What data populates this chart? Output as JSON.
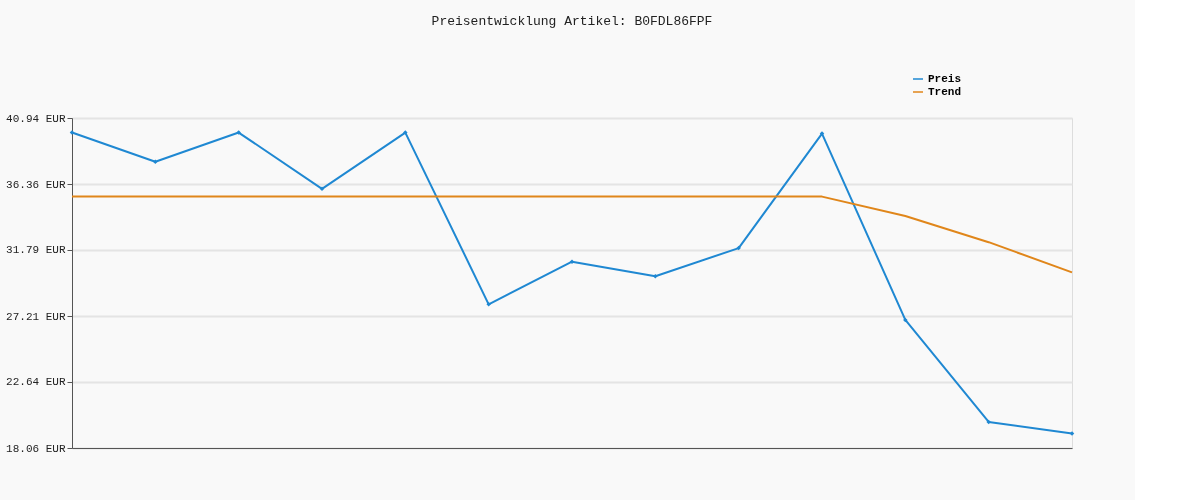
{
  "chart_data": {
    "type": "line",
    "title": "Preisentwicklung Artikel: B0FDL86FPF",
    "categories": [
      null,
      null,
      null,
      null,
      null,
      null,
      null,
      null,
      null,
      null,
      null,
      null,
      null
    ],
    "series": [
      {
        "name": "Preis",
        "color": "#1f88d2",
        "marker": "diamond",
        "values": [
          39.93,
          37.91,
          39.93,
          36.03,
          39.93,
          28.02,
          30.98,
          29.97,
          31.92,
          39.86,
          26.94,
          19.87,
          19.07
        ]
      },
      {
        "name": "Trend",
        "color": "#e0861a",
        "marker": "none",
        "values": [
          35.49,
          35.49,
          35.49,
          35.49,
          35.49,
          35.49,
          35.49,
          35.49,
          35.49,
          35.49,
          34.14,
          32.33,
          30.24
        ]
      }
    ],
    "ylim": [
      18.06,
      40.94
    ],
    "yticks": [
      {
        "value": 18.06,
        "label": "18.06 EUR"
      },
      {
        "value": 22.64,
        "label": "22.64 EUR"
      },
      {
        "value": 27.21,
        "label": "27.21 EUR"
      },
      {
        "value": 31.79,
        "label": "31.79 EUR"
      },
      {
        "value": 36.36,
        "label": "36.36 EUR"
      },
      {
        "value": 40.94,
        "label": "40.94 EUR"
      }
    ],
    "grid": "y",
    "legend": "top right",
    "tick_labels": "y",
    "line_style": "solid"
  }
}
